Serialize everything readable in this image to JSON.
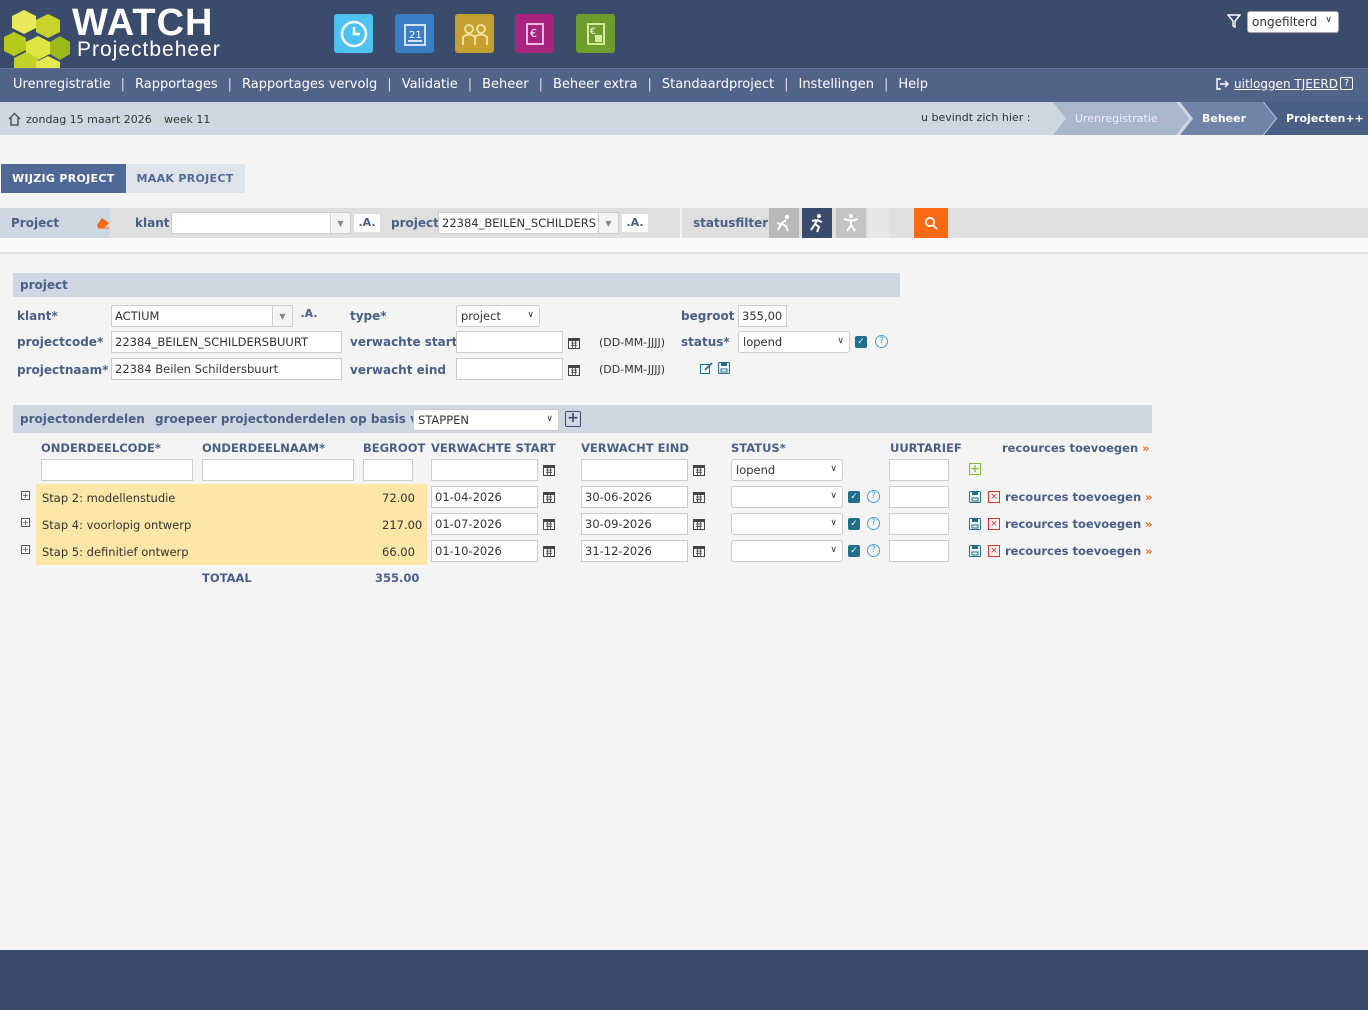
{
  "logo": {
    "title": "WATCH",
    "subtitle": "Projectbeheer"
  },
  "header": {
    "app_icons": [
      "clock-icon",
      "calendar-icon",
      "users-icon",
      "invoice-icon",
      "calculator-invoice-icon"
    ],
    "filter_value": "ongefilterd"
  },
  "menu": {
    "items": [
      "Urenregistratie",
      "Rapportages",
      "Rapportages vervolg",
      "Validatie",
      "Beheer",
      "Beheer extra",
      "Standaardproject",
      "Instellingen",
      "Help"
    ],
    "logout_label": "uitloggen TJEERD",
    "help_label": "?"
  },
  "infobar": {
    "date": "zondag 15 maart 2026",
    "week": "week 11",
    "crumb_prefix": "u bevindt zich hier :",
    "crumbs": [
      "Urenregistratie",
      "Beheer",
      "Projecten++"
    ]
  },
  "tabs": {
    "edit": "WIJZIG PROJECT",
    "create": "MAAK PROJECT"
  },
  "filterbar": {
    "project_label": "Project",
    "klant_label": "klant",
    "klant_value": "",
    "a_label": ".A.",
    "project_field_label": "project",
    "project_value": "22384_BEILEN_SCHILDERS",
    "statusfilter_label": "statusfilter"
  },
  "project": {
    "section_title": "project",
    "klant_label": "klant*",
    "klant_value": "ACTIUM",
    "projectcode_label": "projectcode*",
    "projectcode_value": "22384_BEILEN_SCHILDERSBUURT",
    "projectnaam_label": "projectnaam*",
    "projectnaam_value": "22384 Beilen Schildersbuurt",
    "type_label": "type*",
    "type_value": "project",
    "start_label": "verwachte start",
    "start_value": "",
    "end_label": "verwacht eind",
    "end_value": "",
    "date_hint": "(DD-MM-JJJJ)",
    "begroot_label": "begroot",
    "begroot_value": "355,00",
    "status_label": "status*",
    "status_value": "lopend"
  },
  "parts": {
    "section_title": "projectonderdelen",
    "group_label": "groepeer projectonderdelen op basis van",
    "group_value": "STAPPEN",
    "columns": [
      "ONDERDEELCODE*",
      "ONDERDEELNAAM*",
      "BEGROOT",
      "VERWACHTE START",
      "VERWACHT EIND",
      "STATUS*",
      "UURTARIEF"
    ],
    "resources_header": "recources toevoegen",
    "new_status": "lopend",
    "rows": [
      {
        "name": "Stap 2: modellenstudie",
        "begroot": "72.00",
        "start": "01-04-2026",
        "end": "30-06-2026",
        "status": "",
        "rate": "",
        "resources": "recources toevoegen"
      },
      {
        "name": "Stap 4: voorlopig ontwerp",
        "begroot": "217.00",
        "start": "01-07-2026",
        "end": "30-09-2026",
        "status": "",
        "rate": "",
        "resources": "recources toevoegen"
      },
      {
        "name": "Stap 5: definitief ontwerp",
        "begroot": "66.00",
        "start": "01-10-2026",
        "end": "31-12-2026",
        "status": "",
        "rate": "",
        "resources": "recources toevoegen"
      }
    ],
    "total_label": "TOTAAL",
    "total_value": "355.00"
  },
  "colors": {
    "header": "#3b4b6b",
    "menubar": "#516389",
    "accent": "#f96a12",
    "row_highlight": "#fde7a6"
  }
}
